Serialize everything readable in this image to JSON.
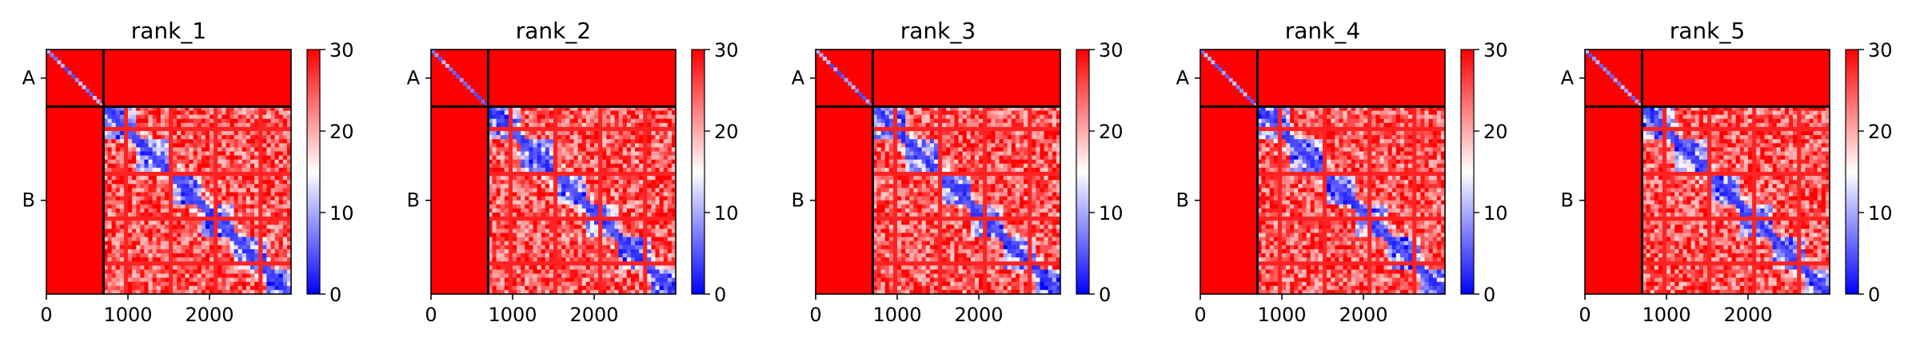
{
  "chart_data": [
    {
      "type": "heatmap",
      "title": "rank_1",
      "x_range": [
        0,
        3000
      ],
      "y_range": [
        0,
        3000
      ],
      "x_ticks": [
        0,
        1000,
        2000
      ],
      "x_tick_labels": [
        "0",
        "1000",
        "2000"
      ],
      "chain_boundaries": [
        0,
        700,
        3000
      ],
      "y_tick_labels": [
        "A",
        "B"
      ],
      "colorbar": {
        "min": 0,
        "max": 30,
        "ticks": [
          0,
          10,
          20,
          30
        ],
        "tick_labels": [
          "0",
          "10",
          "20",
          "30"
        ],
        "colors": [
          "#0000ff",
          "#ffffff",
          "#ff0000"
        ]
      }
    },
    {
      "type": "heatmap",
      "title": "rank_2",
      "x_range": [
        0,
        3000
      ],
      "y_range": [
        0,
        3000
      ],
      "x_ticks": [
        0,
        1000,
        2000
      ],
      "x_tick_labels": [
        "0",
        "1000",
        "2000"
      ],
      "chain_boundaries": [
        0,
        700,
        3000
      ],
      "y_tick_labels": [
        "A",
        "B"
      ],
      "colorbar": {
        "min": 0,
        "max": 30,
        "ticks": [
          0,
          10,
          20,
          30
        ],
        "tick_labels": [
          "0",
          "10",
          "20",
          "30"
        ],
        "colors": [
          "#0000ff",
          "#ffffff",
          "#ff0000"
        ]
      }
    },
    {
      "type": "heatmap",
      "title": "rank_3",
      "x_range": [
        0,
        3000
      ],
      "y_range": [
        0,
        3000
      ],
      "x_ticks": [
        0,
        1000,
        2000
      ],
      "x_tick_labels": [
        "0",
        "1000",
        "2000"
      ],
      "chain_boundaries": [
        0,
        700,
        3000
      ],
      "y_tick_labels": [
        "A",
        "B"
      ],
      "colorbar": {
        "min": 0,
        "max": 30,
        "ticks": [
          0,
          10,
          20,
          30
        ],
        "tick_labels": [
          "0",
          "10",
          "20",
          "30"
        ],
        "colors": [
          "#0000ff",
          "#ffffff",
          "#ff0000"
        ]
      }
    },
    {
      "type": "heatmap",
      "title": "rank_4",
      "x_range": [
        0,
        3000
      ],
      "y_range": [
        0,
        3000
      ],
      "x_ticks": [
        0,
        1000,
        2000
      ],
      "x_tick_labels": [
        "0",
        "1000",
        "2000"
      ],
      "chain_boundaries": [
        0,
        700,
        3000
      ],
      "y_tick_labels": [
        "A",
        "B"
      ],
      "colorbar": {
        "min": 0,
        "max": 30,
        "ticks": [
          0,
          10,
          20,
          30
        ],
        "tick_labels": [
          "0",
          "10",
          "20",
          "30"
        ],
        "colors": [
          "#0000ff",
          "#ffffff",
          "#ff0000"
        ]
      }
    },
    {
      "type": "heatmap",
      "title": "rank_5",
      "x_range": [
        0,
        3000
      ],
      "y_range": [
        0,
        3000
      ],
      "x_ticks": [
        0,
        1000,
        2000
      ],
      "x_tick_labels": [
        "0",
        "1000",
        "2000"
      ],
      "chain_boundaries": [
        0,
        700,
        3000
      ],
      "y_tick_labels": [
        "A",
        "B"
      ],
      "colorbar": {
        "min": 0,
        "max": 30,
        "ticks": [
          0,
          10,
          20,
          30
        ],
        "tick_labels": [
          "0",
          "10",
          "20",
          "30"
        ],
        "colors": [
          "#0000ff",
          "#ffffff",
          "#ff0000"
        ]
      }
    }
  ]
}
